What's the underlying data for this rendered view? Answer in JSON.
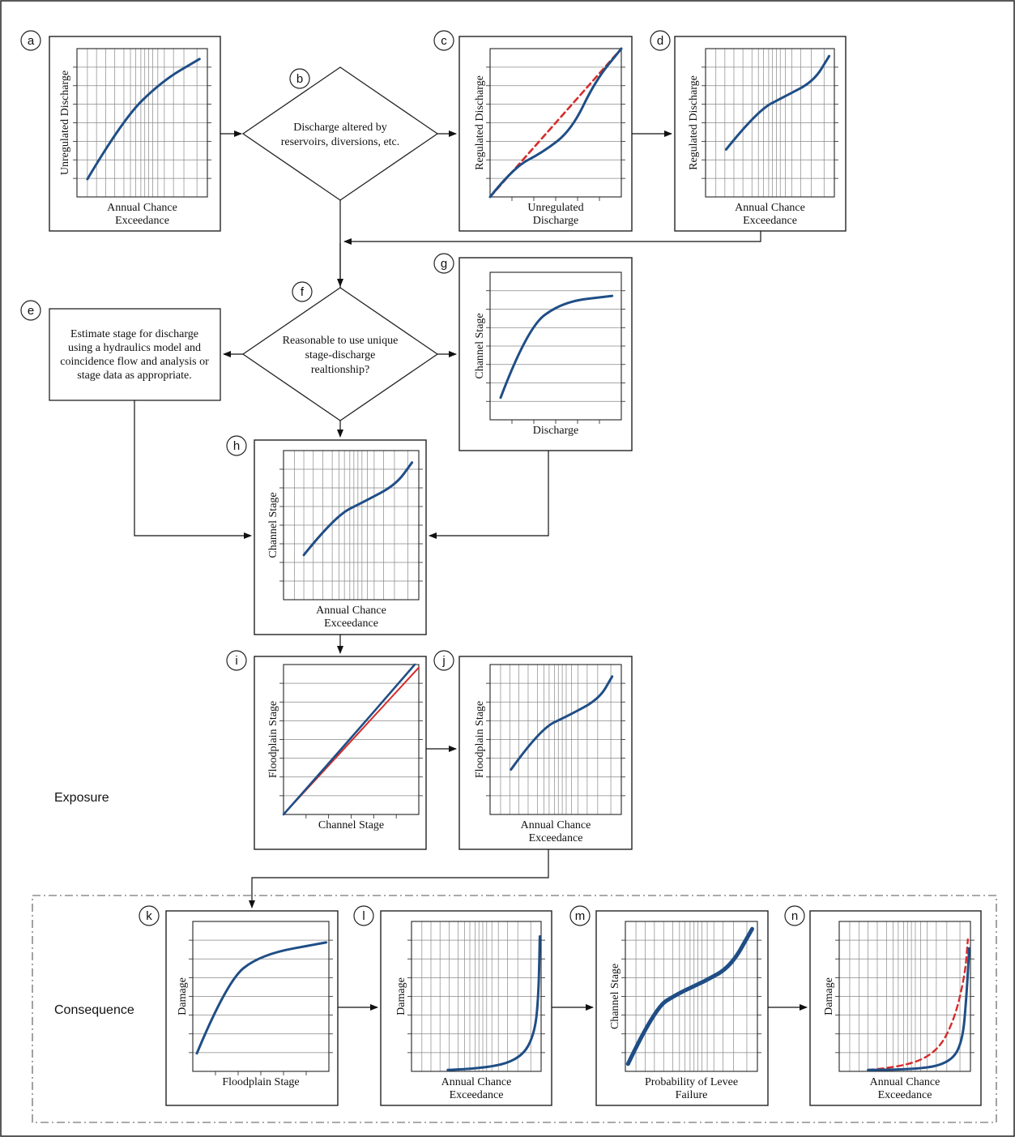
{
  "panels": {
    "a": {
      "letter": "a",
      "ylabel": "Unregulated Discharge",
      "xlabel": [
        "Annual Chance",
        "Exceedance"
      ]
    },
    "b": {
      "letter": "b",
      "text": [
        "Discharge altered by",
        "reservoirs, diversions, etc."
      ]
    },
    "c": {
      "letter": "c",
      "ylabel": "Regulated Discharge",
      "xlabel": [
        "Unregulated",
        "Discharge"
      ]
    },
    "d": {
      "letter": "d",
      "ylabel": "Regulated Discharge",
      "xlabel": [
        "Annual Chance",
        "Exceedance"
      ]
    },
    "e": {
      "letter": "e",
      "text": [
        "Estimate stage for discharge",
        "using a hydraulics model and",
        "coincidence flow and analysis or",
        "stage data as appropriate."
      ]
    },
    "f": {
      "letter": "f",
      "text": [
        "Reasonable to use unique",
        "stage-discharge",
        "realtionship?"
      ]
    },
    "g": {
      "letter": "g",
      "ylabel": "Channel Stage",
      "xlabel": [
        "Discharge"
      ]
    },
    "h": {
      "letter": "h",
      "ylabel": "Channel Stage",
      "xlabel": [
        "Annual Chance",
        "Exceedance"
      ]
    },
    "i": {
      "letter": "i",
      "ylabel": "Floodplain Stage",
      "xlabel": [
        "Channel Stage"
      ]
    },
    "j": {
      "letter": "j",
      "ylabel": "Floodplain Stage",
      "xlabel": [
        "Annual Chance",
        "Exceedance"
      ]
    },
    "k": {
      "letter": "k",
      "ylabel": "Damage",
      "xlabel": [
        "Floodplain Stage"
      ]
    },
    "l": {
      "letter": "l",
      "ylabel": "Damage",
      "xlabel": [
        "Annual Chance",
        "Exceedance"
      ]
    },
    "m": {
      "letter": "m",
      "ylabel": "Channel Stage",
      "xlabel": [
        "Probability of Levee",
        "Failure"
      ]
    },
    "n": {
      "letter": "n",
      "ylabel": "Damage",
      "xlabel": [
        "Annual Chance",
        "Exceedance"
      ]
    }
  },
  "section_labels": {
    "exposure": "Exposure",
    "consequence": "Consequence"
  },
  "colors": {
    "curve": "#1f4e86",
    "dashed": "#d62b2b",
    "line": "#111111",
    "grid": "#888888"
  }
}
